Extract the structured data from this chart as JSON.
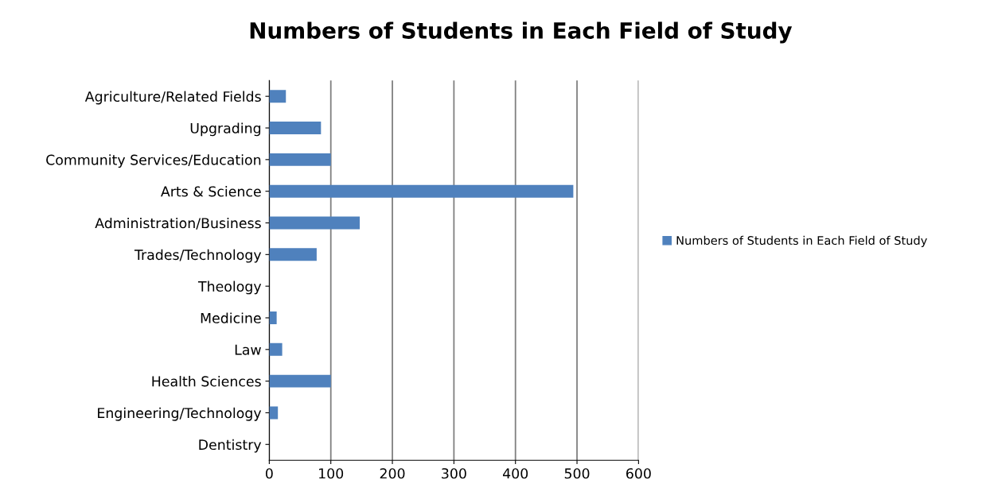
{
  "chart_data": {
    "type": "bar",
    "orientation": "horizontal",
    "title": "Numbers of Students in Each Field of Study",
    "categories": [
      "Agriculture/Related Fields",
      "Upgrading",
      "Community Services/Education",
      "Arts & Science",
      "Administration/Business",
      "Trades/Technology",
      "Theology",
      "Medicine",
      "Law",
      "Health Sciences",
      "Engineering/Technology",
      "Dentistry"
    ],
    "series": [
      {
        "name": "Numbers of Students in Each Field of Study",
        "color": "#4f81bd",
        "values": [
          27,
          84,
          100,
          494,
          147,
          77,
          0,
          12,
          21,
          100,
          14,
          0
        ]
      }
    ],
    "xlim": [
      0,
      600
    ],
    "xticks": [
      0,
      100,
      200,
      300,
      400,
      500,
      600
    ],
    "grid": "x",
    "legend": "right"
  }
}
